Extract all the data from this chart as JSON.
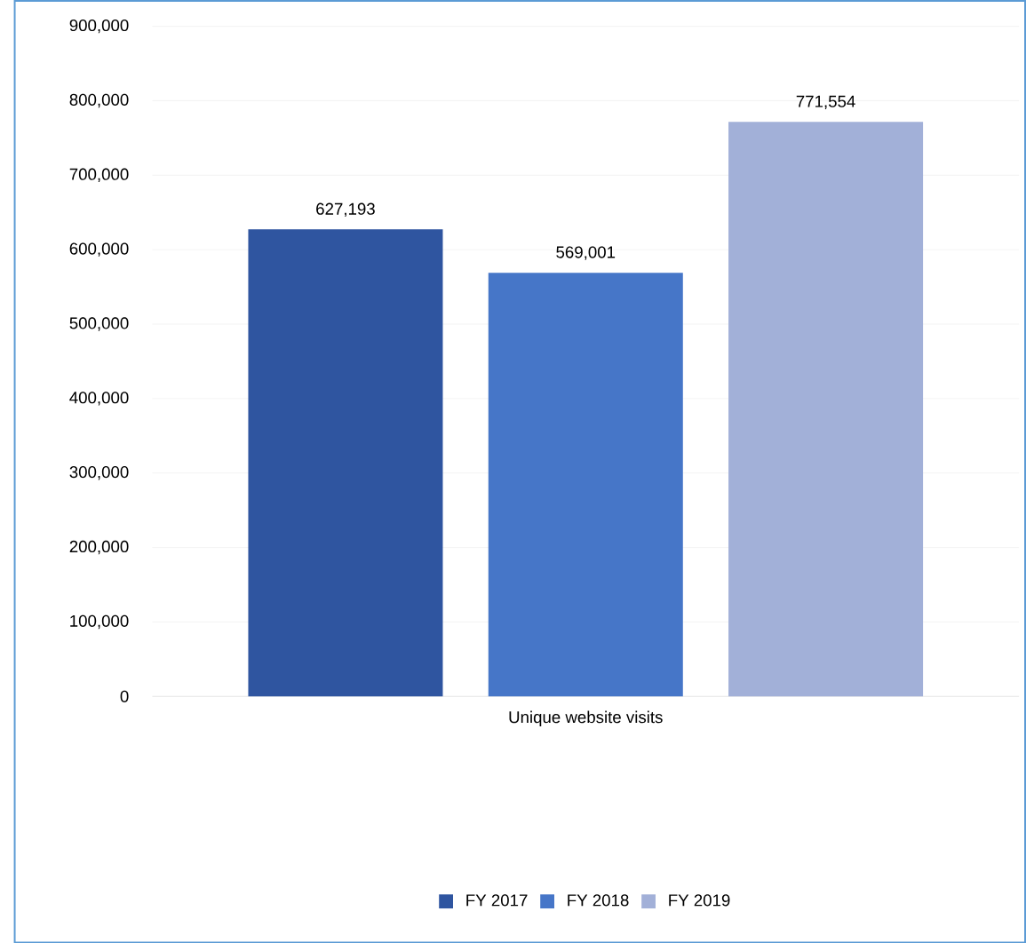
{
  "chart_data": {
    "type": "bar",
    "categories": [
      "Unique website visits"
    ],
    "series": [
      {
        "name": "FY 2017",
        "color": "#2f55a0",
        "values": [
          627193
        ],
        "value_labels": [
          "627,193"
        ]
      },
      {
        "name": "FY 2018",
        "color": "#4676c8",
        "values": [
          569001
        ],
        "value_labels": [
          "569,001"
        ]
      },
      {
        "name": "FY 2019",
        "color": "#a2b0d8",
        "values": [
          771554
        ],
        "value_labels": [
          "771,554"
        ]
      }
    ],
    "ylim": [
      0,
      900000
    ],
    "yticks": [
      {
        "value": 0,
        "label": "0"
      },
      {
        "value": 100000,
        "label": "100,000"
      },
      {
        "value": 200000,
        "label": "200,000"
      },
      {
        "value": 300000,
        "label": "300,000"
      },
      {
        "value": 400000,
        "label": "400,000"
      },
      {
        "value": 500000,
        "label": "500,000"
      },
      {
        "value": 600000,
        "label": "600,000"
      },
      {
        "value": 700000,
        "label": "700,000"
      },
      {
        "value": 800000,
        "label": "800,000"
      },
      {
        "value": 900000,
        "label": "900,000"
      }
    ],
    "grid": "y",
    "legend": "bottom"
  }
}
